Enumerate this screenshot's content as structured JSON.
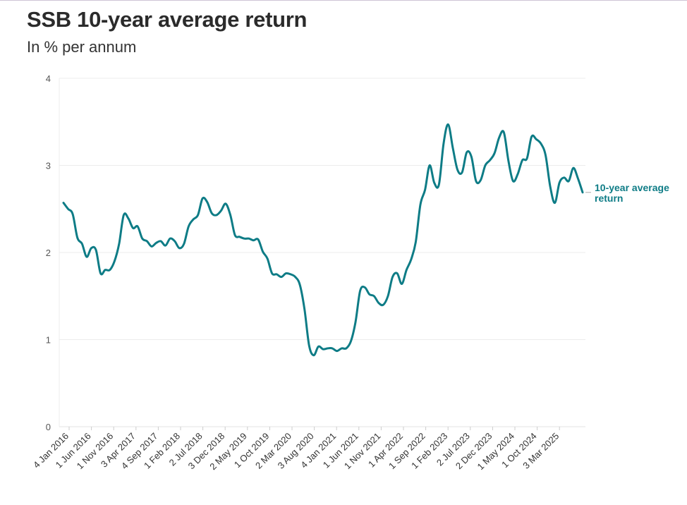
{
  "title": "SSB 10-year average return",
  "subtitle": "In % per annum",
  "chart_data": {
    "type": "line",
    "title": "SSB 10-year average return",
    "subtitle": "In % per annum",
    "ylim": [
      0,
      4
    ],
    "yticks": [
      0,
      1,
      2,
      3,
      4
    ],
    "grid": true,
    "color": "#0e7c86",
    "series_label": "10-year average return",
    "x_tick_labels": [
      "4 Jan 2016",
      "1 Jun 2016",
      "1 Nov 2016",
      "3 Apr 2017",
      "4 Sep 2017",
      "1 Feb 2018",
      "2 Jul 2018",
      "3 Dec 2018",
      "2 May 2019",
      "1 Oct 2019",
      "2 Mar 2020",
      "3 Aug 2020",
      "4 Jan 2021",
      "1 Jun 2021",
      "1 Nov 2021",
      "1 Apr 2022",
      "1 Sep 2022",
      "1 Feb 2023",
      "2 Jul 2023",
      "2 Dec 2023",
      "1 May 2024",
      "1 Oct 2024",
      "3 Mar 2025"
    ],
    "series": [
      {
        "name": "10-year average return",
        "values": [
          2.57,
          2.5,
          2.44,
          2.17,
          2.1,
          1.95,
          2.05,
          2.03,
          1.76,
          1.8,
          1.8,
          1.9,
          2.1,
          2.43,
          2.39,
          2.28,
          2.3,
          2.16,
          2.13,
          2.07,
          2.11,
          2.13,
          2.08,
          2.16,
          2.13,
          2.05,
          2.1,
          2.3,
          2.38,
          2.43,
          2.62,
          2.58,
          2.45,
          2.43,
          2.48,
          2.56,
          2.43,
          2.2,
          2.18,
          2.16,
          2.16,
          2.14,
          2.15,
          2.01,
          1.93,
          1.76,
          1.75,
          1.72,
          1.76,
          1.75,
          1.72,
          1.63,
          1.35,
          0.93,
          0.82,
          0.92,
          0.89,
          0.9,
          0.9,
          0.87,
          0.9,
          0.9,
          0.98,
          1.2,
          1.56,
          1.6,
          1.52,
          1.5,
          1.42,
          1.4,
          1.5,
          1.72,
          1.76,
          1.64,
          1.8,
          1.92,
          2.12,
          2.55,
          2.72,
          3.0,
          2.8,
          2.78,
          3.25,
          3.47,
          3.2,
          2.95,
          2.92,
          3.15,
          3.1,
          2.82,
          2.83,
          3.0,
          3.06,
          3.14,
          3.32,
          3.38,
          3.05,
          2.82,
          2.9,
          3.06,
          3.08,
          3.33,
          3.3,
          3.25,
          3.12,
          2.76,
          2.57,
          2.8,
          2.86,
          2.82,
          2.97,
          2.85,
          2.69
        ]
      }
    ]
  }
}
